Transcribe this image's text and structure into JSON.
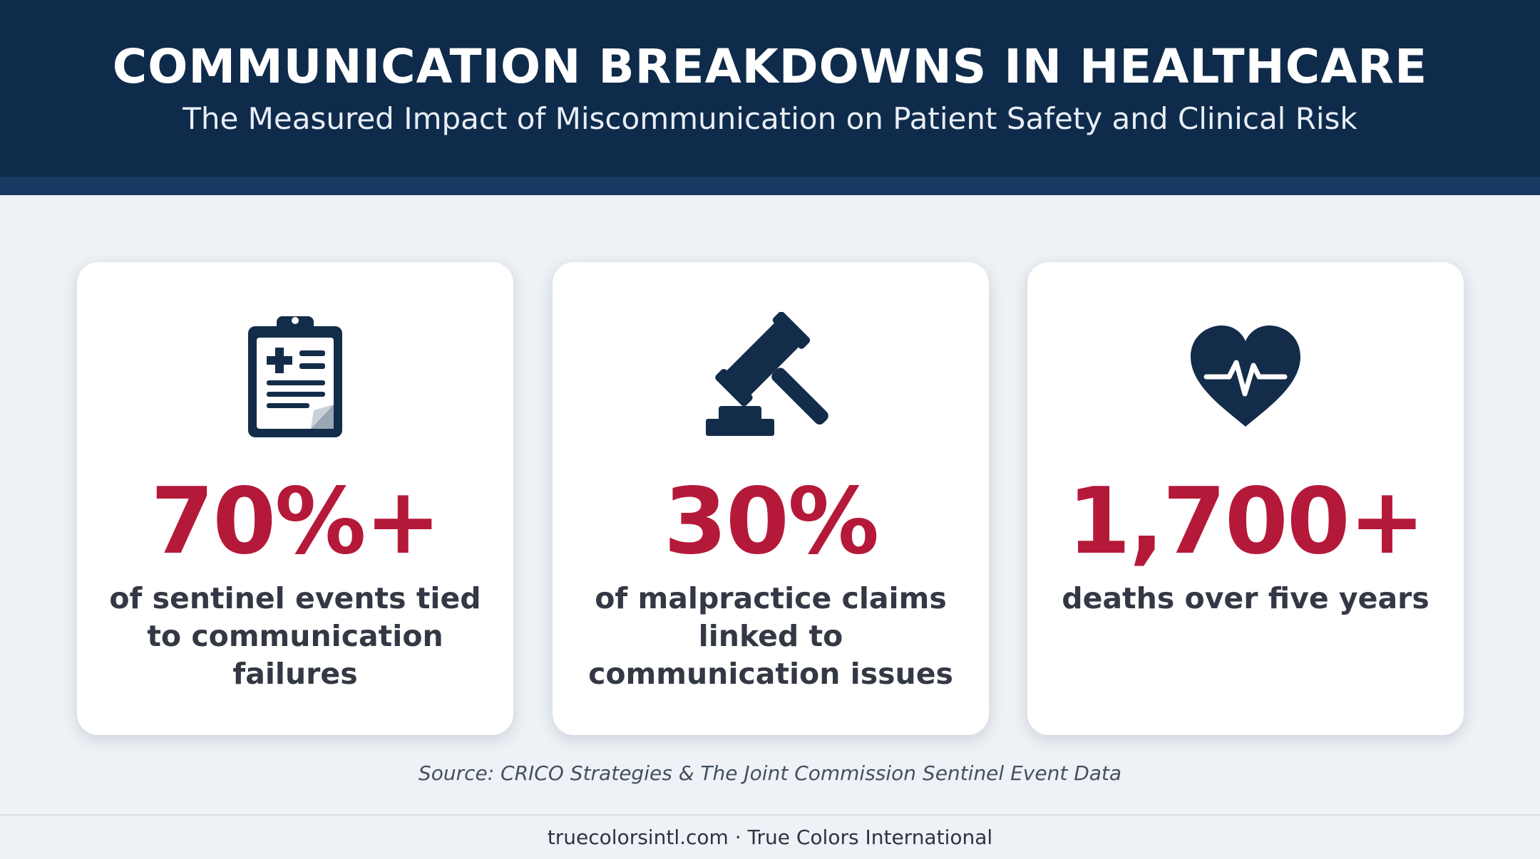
{
  "header": {
    "title": "COMMUNICATION BREAKDOWNS IN HEALTHCARE",
    "subtitle": "The Measured Impact of Miscommunication on Patient Safety and Clinical Risk"
  },
  "cards": [
    {
      "icon": "clipboard-medical-icon",
      "stat": "70%+",
      "description": "of sentinel events tied to communication failures"
    },
    {
      "icon": "gavel-icon",
      "stat": "30%",
      "description": "of malpractice claims linked to communication issues"
    },
    {
      "icon": "heartbeat-icon",
      "stat": "1,700+",
      "description": "deaths over five years"
    }
  ],
  "source": "Source: CRICO Strategies & The Joint Commission Sentinel Event Data",
  "footer": "truecolorsintl.com · True Colors International",
  "colors": {
    "header_bg": "#0f2b4b",
    "accent_red": "#b5193a",
    "icon_navy": "#132c4a",
    "page_bg": "#eef2f6"
  }
}
